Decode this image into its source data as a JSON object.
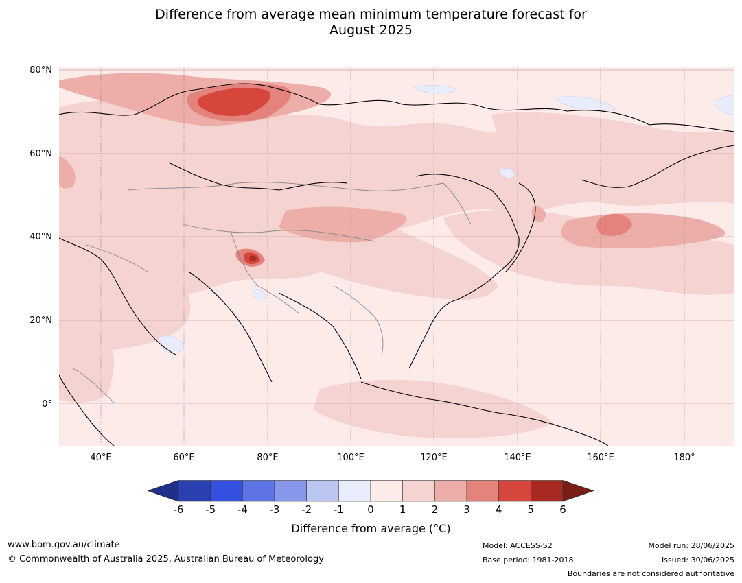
{
  "title_line1": "Difference from average mean minimum temperature forecast for",
  "title_line2": "August 2025",
  "lat_labels": [
    "80°N",
    "60°N",
    "40°N",
    "20°N",
    "0°"
  ],
  "lon_labels": [
    "40°E",
    "60°E",
    "80°E",
    "100°E",
    "120°E",
    "140°E",
    "160°E",
    "180°"
  ],
  "colorbar": {
    "ticks": [
      "-6",
      "-5",
      "-4",
      "-3",
      "-2",
      "-1",
      "0",
      "1",
      "2",
      "3",
      "4",
      "5",
      "6"
    ],
    "colors": [
      "#1f2f8a",
      "#2a3fb0",
      "#3350e0",
      "#5e74e4",
      "#8797ea",
      "#bcc6f3",
      "#e8ecfb",
      "#fcebe9",
      "#f5d3d0",
      "#edaea9",
      "#e4827c",
      "#d6463d",
      "#a62a22",
      "#7a1c17"
    ],
    "label": "Difference from average (°C)"
  },
  "footer": {
    "website": "www.bom.gov.au/climate",
    "copyright": "© Commonwealth of Australia 2025, Australian Bureau of Meteorology",
    "model": "Model: ACCESS-S2",
    "base_period": "Base period: 1981-2018",
    "model_run": "Model run: 28/06/2025",
    "issued": "Issued: 30/06/2025",
    "boundaries_note": "Boundaries are not considered authoritative"
  }
}
